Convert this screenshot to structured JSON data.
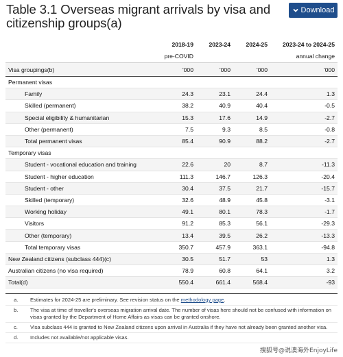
{
  "title": "Table 3.1 Overseas migrant arrivals by visa and citizenship groups(a)",
  "download_label": "Download",
  "columns": {
    "row1": [
      "2018-19",
      "2023-24",
      "2024-25",
      "2023-24 to 2024-25"
    ],
    "row2": [
      "pre-COVID",
      "",
      "",
      "annual change"
    ],
    "row3_label": "Visa groupings(b)",
    "row3_units": [
      "'000",
      "'000",
      "'000",
      "'000"
    ]
  },
  "rows": [
    {
      "label": "Permanent visas",
      "values": [
        "",
        "",
        "",
        ""
      ],
      "type": "group"
    },
    {
      "label": "Family",
      "values": [
        "24.3",
        "23.1",
        "24.4",
        "1.3"
      ],
      "type": "item"
    },
    {
      "label": "Skilled (permanent)",
      "values": [
        "38.2",
        "40.9",
        "40.4",
        "-0.5"
      ],
      "type": "item"
    },
    {
      "label": "Special eligibility & humanitarian",
      "values": [
        "15.3",
        "17.6",
        "14.9",
        "-2.7"
      ],
      "type": "item"
    },
    {
      "label": "Other (permanent)",
      "values": [
        "7.5",
        "9.3",
        "8.5",
        "-0.8"
      ],
      "type": "item"
    },
    {
      "label": "Total permanent visas",
      "values": [
        "85.4",
        "90.9",
        "88.2",
        "-2.7"
      ],
      "type": "item"
    },
    {
      "label": "Temporary visas",
      "values": [
        "",
        "",
        "",
        ""
      ],
      "type": "group"
    },
    {
      "label": "Student - vocational education and training",
      "values": [
        "22.6",
        "20",
        "8.7",
        "-11.3"
      ],
      "type": "item"
    },
    {
      "label": "Student - higher education",
      "values": [
        "111.3",
        "146.7",
        "126.3",
        "-20.4"
      ],
      "type": "item"
    },
    {
      "label": "Student - other",
      "values": [
        "30.4",
        "37.5",
        "21.7",
        "-15.7"
      ],
      "type": "item"
    },
    {
      "label": "Skilled (temporary)",
      "values": [
        "32.6",
        "48.9",
        "45.8",
        "-3.1"
      ],
      "type": "item"
    },
    {
      "label": "Working holiday",
      "values": [
        "49.1",
        "80.1",
        "78.3",
        "-1.7"
      ],
      "type": "item"
    },
    {
      "label": "Visitors",
      "values": [
        "91.2",
        "85.3",
        "56.1",
        "-29.3"
      ],
      "type": "item"
    },
    {
      "label": "Other (temporary)",
      "values": [
        "13.4",
        "39.5",
        "26.2",
        "-13.3"
      ],
      "type": "item"
    },
    {
      "label": "Total temporary visas",
      "values": [
        "350.7",
        "457.9",
        "363.1",
        "-94.8"
      ],
      "type": "item"
    },
    {
      "label": "New Zealand citizens (subclass 444)(c)",
      "values": [
        "30.5",
        "51.7",
        "53",
        "1.3"
      ],
      "type": "group"
    },
    {
      "label": "Australian citizens (no visa required)",
      "values": [
        "78.9",
        "60.8",
        "64.1",
        "3.2"
      ],
      "type": "group"
    },
    {
      "label": "Total(d)",
      "values": [
        "550.4",
        "661.4",
        "568.4",
        "-93"
      ],
      "type": "group"
    }
  ],
  "notes": {
    "a_label": "a.",
    "a_text": "Estimates for 2024-25 are preliminary. See revision status on the ",
    "a_link": "methodology page",
    "a_end": ".",
    "b_label": "b.",
    "b_text": "The visa at time of traveller's overseas migration arrival date. The number of visas here should not be confused with information on visas granted by the Department of Home Affairs as visas can be granted onshore.",
    "c_label": "c.",
    "c_text": "Visa subclass 444 is granted to New Zealand citizens upon arrival in Australia if they have not already been granted another visa.",
    "d_label": "d.",
    "d_text": "Includes not available/not applicable visas."
  },
  "watermark": "搜狐号@说澳海外EnjoyLife",
  "colors": {
    "accent": "#1f4e8c",
    "row_shade": "#f4f4f4"
  },
  "icons": {
    "download": "chevron-down-icon"
  }
}
